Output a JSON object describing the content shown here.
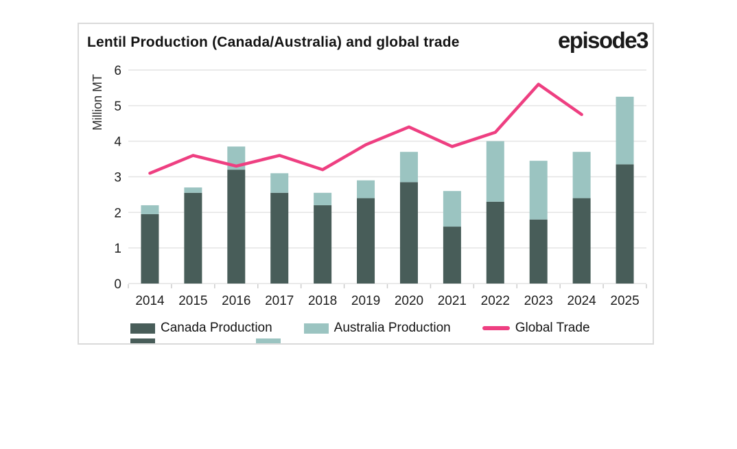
{
  "header": {
    "title": "Lentil Production (Canada/Australia) and global trade",
    "logo_text": "episode3"
  },
  "colors": {
    "canada": "#485d59",
    "australia": "#9bc4c1",
    "trade": "#ee3f81",
    "grid": "#e4e4e4",
    "tick": "#cccccc",
    "text": "#1d1d1d",
    "card_border": "#dadada"
  },
  "chart_data": {
    "type": "combo",
    "title": "Lentil Production (Canada/Australia) and global trade",
    "xlabel": "",
    "ylabel": "Million MT",
    "ylim": [
      0,
      6
    ],
    "yticks": [
      0,
      1,
      2,
      3,
      4,
      5,
      6
    ],
    "grid": "horizontal",
    "legend_position": "bottom",
    "categories": [
      "2014",
      "2015",
      "2016",
      "2017",
      "2018",
      "2019",
      "2020",
      "2021",
      "2022",
      "2023",
      "2024",
      "2025"
    ],
    "series": [
      {
        "name": "Canada Production",
        "type": "bar",
        "stack": "production",
        "color": "#485d59",
        "values": [
          1.95,
          2.55,
          3.2,
          2.55,
          2.2,
          2.4,
          2.85,
          1.6,
          2.3,
          1.8,
          2.4,
          3.35
        ]
      },
      {
        "name": "Australia Production",
        "type": "bar",
        "stack": "production",
        "color": "#9bc4c1",
        "values": [
          0.25,
          0.15,
          0.65,
          0.55,
          0.35,
          0.5,
          0.85,
          1.0,
          1.7,
          1.65,
          1.3,
          1.9
        ]
      },
      {
        "name": "Global Trade",
        "type": "line",
        "color": "#ee3f81",
        "values": [
          3.1,
          3.6,
          3.3,
          3.6,
          3.2,
          3.9,
          4.4,
          3.85,
          4.25,
          5.6,
          4.75,
          null
        ]
      }
    ]
  }
}
